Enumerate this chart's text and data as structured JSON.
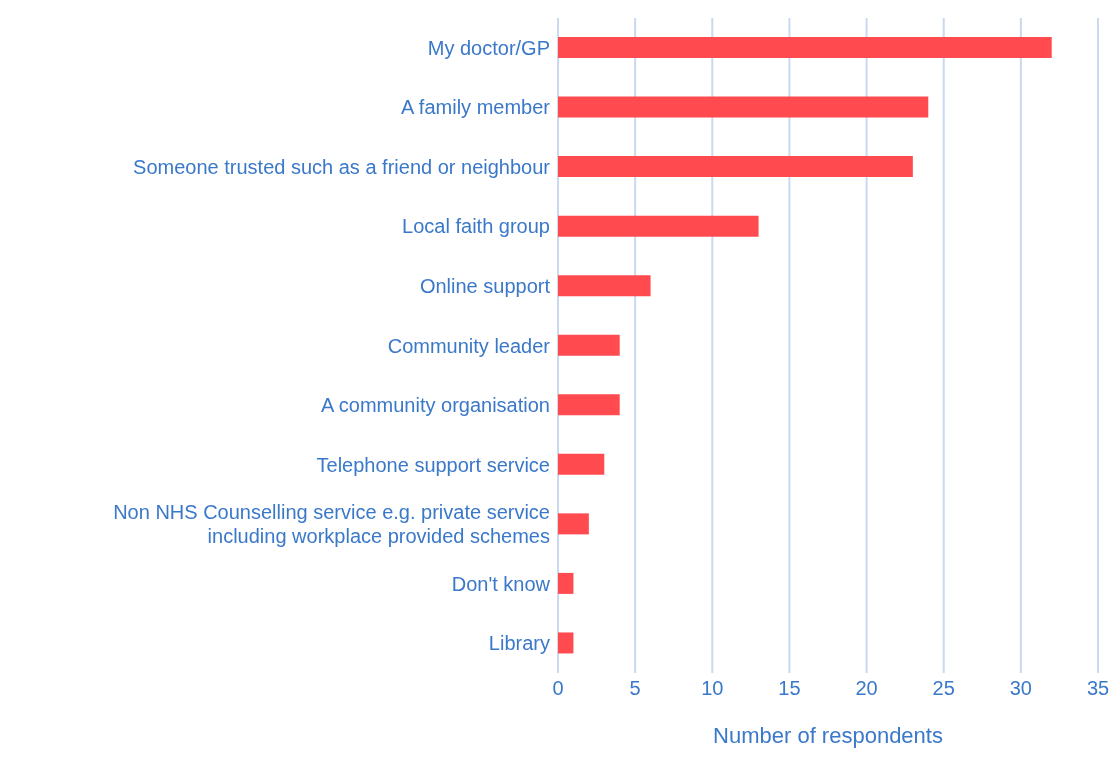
{
  "chart_data": {
    "type": "bar",
    "orientation": "horizontal",
    "xlabel": "Number of respondents",
    "categories": [
      "My doctor/GP",
      "A family member",
      "Someone trusted such as a friend or neighbour",
      "Local faith group",
      "Online support",
      "Community leader",
      "A community organisation",
      "Telephone support service",
      "Non NHS Counselling service e.g. private service including workplace provided schemes",
      "Don't know",
      "Library"
    ],
    "values": [
      32,
      24,
      23,
      13,
      6,
      4,
      4,
      3,
      2,
      1,
      1
    ],
    "color": "#ff4a4f",
    "xlim": [
      0,
      35
    ],
    "xticks": [
      0,
      5,
      10,
      15,
      20,
      25,
      30,
      35
    ],
    "grid": "x"
  }
}
